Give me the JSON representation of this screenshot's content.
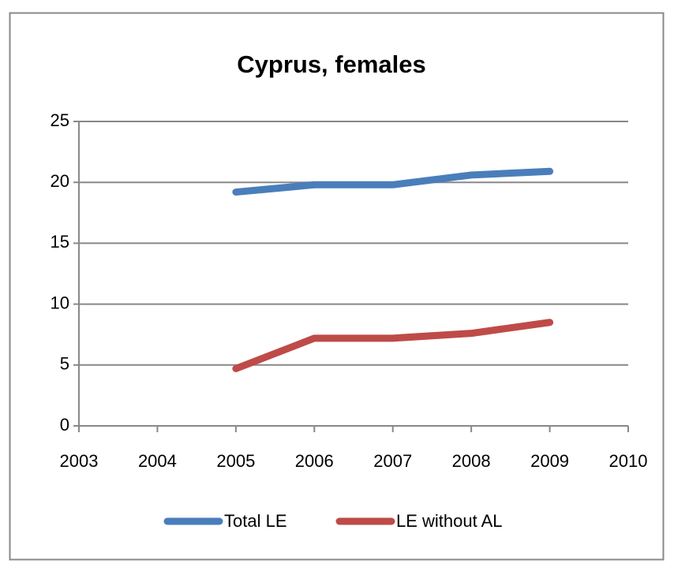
{
  "chart_data": {
    "type": "line",
    "title": "Cyprus, females",
    "x": [
      2005,
      2006,
      2007,
      2008,
      2009
    ],
    "series": [
      {
        "name": "Total LE",
        "color": "#4a7ebb",
        "values": [
          19.2,
          19.8,
          19.8,
          20.6,
          20.9
        ]
      },
      {
        "name": "LE without AL",
        "color": "#be4b48",
        "values": [
          4.7,
          7.2,
          7.2,
          7.6,
          8.5
        ]
      }
    ],
    "xlim": [
      2003,
      2010
    ],
    "xticks": [
      2003,
      2004,
      2005,
      2006,
      2007,
      2008,
      2009,
      2010
    ],
    "ylim": [
      0,
      25
    ],
    "yticks": [
      0,
      5,
      10,
      15,
      20,
      25
    ],
    "grid": true,
    "legend": "bottom"
  }
}
